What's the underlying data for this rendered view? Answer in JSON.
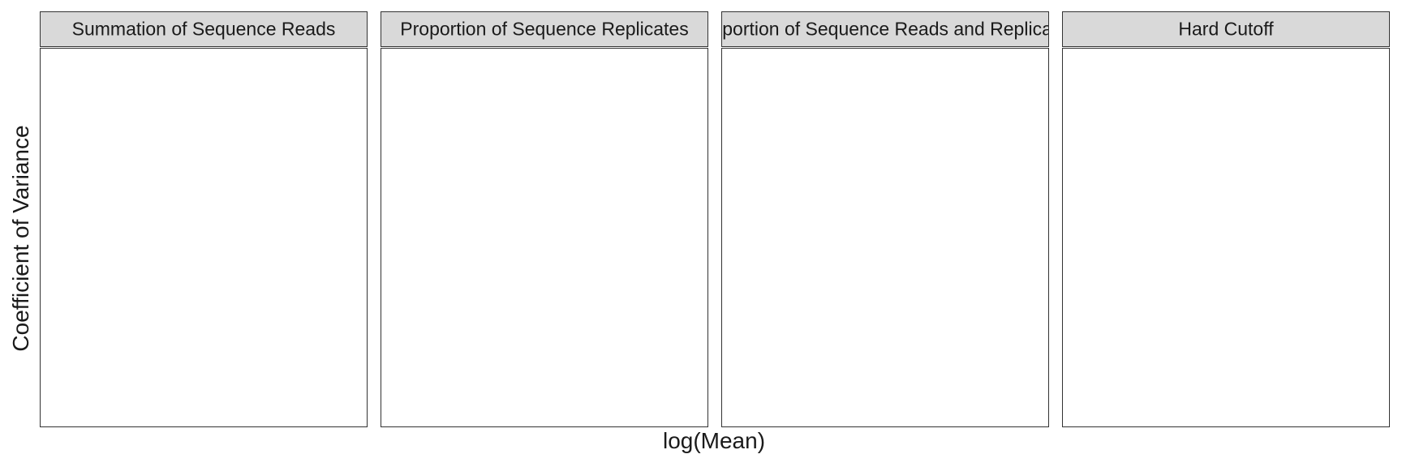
{
  "chart_data": {
    "type": "scatter",
    "xlabel": "log(Mean)",
    "ylabel": "Coefficient of Variance",
    "facets": [
      {
        "title": "Summation of Sequence Reads",
        "points": []
      },
      {
        "title": "Proportion of Sequence Replicates",
        "points": []
      },
      {
        "title": "Proportion of Sequence Reads and Replicates",
        "points": []
      },
      {
        "title": "Hard Cutoff",
        "points": []
      }
    ],
    "grid": false,
    "colors": {
      "strip_fill": "#d9d9d9",
      "panel_border": "#333333",
      "panel_fill": "#ffffff"
    }
  }
}
